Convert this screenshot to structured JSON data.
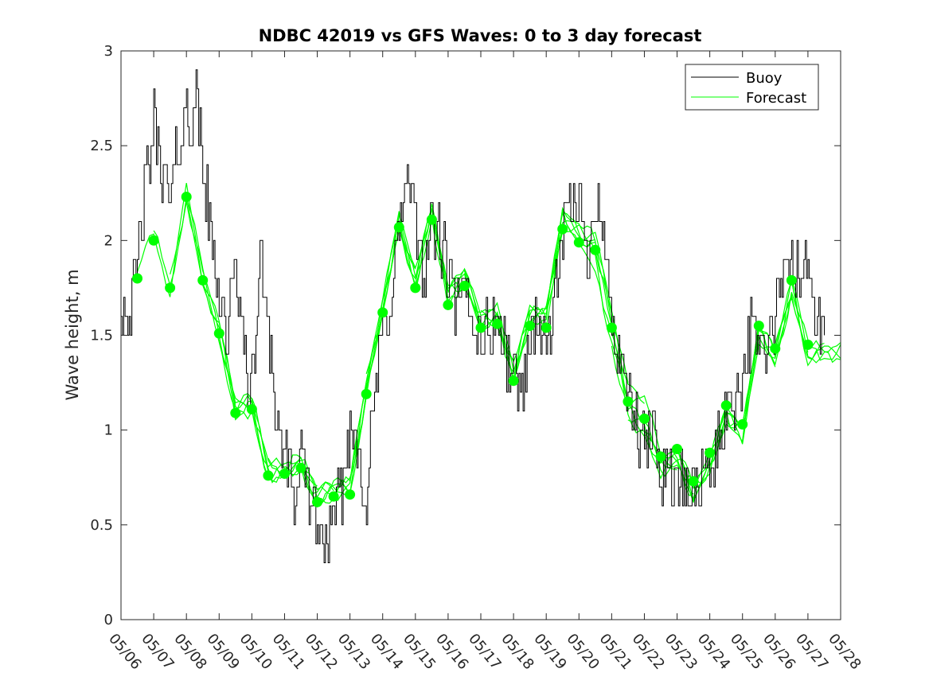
{
  "chart_data": {
    "type": "line",
    "title": "NDBC 42019 vs GFS Waves: 0 to 3 day forecast",
    "xlabel": "",
    "ylabel": "Wave height, m",
    "xlim": [
      "05/06",
      "05/28"
    ],
    "ylim": [
      0,
      3
    ],
    "x_ticks": [
      "05/06",
      "05/07",
      "05/08",
      "05/09",
      "05/10",
      "05/11",
      "05/12",
      "05/13",
      "05/14",
      "05/15",
      "05/16",
      "05/17",
      "05/18",
      "05/19",
      "05/20",
      "05/21",
      "05/22",
      "05/23",
      "05/24",
      "05/25",
      "05/26",
      "05/27",
      "05/28"
    ],
    "y_ticks": [
      "0",
      "0.5",
      "1",
      "1.5",
      "2",
      "2.5",
      "3"
    ],
    "grid": false,
    "legend": {
      "placement": "top-right",
      "entries": [
        "Buoy",
        "Forecast"
      ]
    },
    "colors": {
      "buoy": "#000000",
      "forecast": "#00ff00"
    },
    "series": [
      {
        "name": "Buoy",
        "x": [
          "05/06 00:00",
          "05/06 06:00",
          "05/06 12:00",
          "05/06 18:00",
          "05/07 00:00",
          "05/07 06:00",
          "05/07 12:00",
          "05/07 18:00",
          "05/08 00:00",
          "05/08 03:00",
          "05/08 06:00",
          "05/08 12:00",
          "05/08 18:00",
          "05/09 00:00",
          "05/09 06:00",
          "05/09 12:00",
          "05/09 18:00",
          "05/10 00:00",
          "05/10 06:00",
          "05/10 12:00",
          "05/10 18:00",
          "05/11 00:00",
          "05/11 06:00",
          "05/11 12:00",
          "05/11 18:00",
          "05/12 00:00",
          "05/12 06:00",
          "05/12 12:00",
          "05/12 18:00",
          "05/13 00:00",
          "05/13 06:00",
          "05/13 12:00",
          "05/13 18:00",
          "05/14 00:00",
          "05/14 06:00",
          "05/14 12:00",
          "05/14 18:00",
          "05/15 00:00",
          "05/15 06:00",
          "05/15 12:00",
          "05/15 18:00",
          "05/16 00:00",
          "05/16 06:00",
          "05/16 12:00",
          "05/16 18:00",
          "05/17 00:00",
          "05/17 06:00",
          "05/17 12:00",
          "05/17 18:00",
          "05/18 00:00",
          "05/18 06:00",
          "05/18 12:00",
          "05/18 18:00",
          "05/19 00:00",
          "05/19 06:00",
          "05/19 12:00",
          "05/19 18:00",
          "05/20 00:00",
          "05/20 06:00",
          "05/20 12:00",
          "05/20 18:00",
          "05/21 00:00",
          "05/21 06:00",
          "05/21 12:00",
          "05/21 18:00",
          "05/22 00:00",
          "05/22 06:00",
          "05/22 12:00",
          "05/22 18:00",
          "05/23 00:00",
          "05/23 06:00",
          "05/23 12:00",
          "05/23 18:00",
          "05/24 00:00",
          "05/24 06:00",
          "05/24 12:00",
          "05/24 18:00",
          "05/25 00:00",
          "05/25 06:00",
          "05/25 12:00",
          "05/25 18:00",
          "05/26 00:00",
          "05/26 06:00",
          "05/26 12:00",
          "05/26 18:00",
          "05/27 00:00",
          "05/27 06:00",
          "05/27 12:00"
        ],
        "y": [
          1.7,
          1.6,
          1.9,
          2.3,
          2.6,
          2.4,
          2.2,
          2.5,
          2.7,
          2.6,
          2.8,
          2.4,
          2.0,
          1.7,
          1.5,
          1.9,
          1.4,
          1.2,
          1.9,
          1.6,
          1.0,
          0.9,
          0.6,
          0.8,
          0.7,
          0.5,
          0.4,
          0.5,
          0.7,
          1.0,
          0.9,
          0.6,
          1.2,
          1.5,
          1.7,
          2.1,
          2.3,
          2.1,
          1.8,
          2.1,
          2.0,
          1.8,
          1.6,
          1.7,
          1.6,
          1.5,
          1.5,
          1.6,
          1.4,
          1.3,
          1.2,
          1.5,
          1.6,
          1.4,
          1.7,
          2.0,
          2.2,
          2.2,
          1.9,
          2.3,
          2.0,
          1.6,
          1.3,
          1.2,
          1.0,
          0.9,
          1.0,
          0.8,
          0.8,
          0.7,
          0.7,
          0.7,
          0.8,
          0.8,
          0.9,
          1.1,
          1.2,
          1.3,
          1.5,
          1.5,
          1.4,
          1.6,
          1.8,
          1.9,
          1.8,
          1.9,
          1.6,
          1.5
        ]
      },
      {
        "name": "Forecast",
        "x": [
          "05/06 12:00",
          "05/07 00:00",
          "05/07 12:00",
          "05/08 00:00",
          "05/08 12:00",
          "05/09 00:00",
          "05/09 12:00",
          "05/10 00:00",
          "05/10 12:00",
          "05/11 00:00",
          "05/11 12:00",
          "05/12 00:00",
          "05/12 12:00",
          "05/13 00:00",
          "05/13 12:00",
          "05/14 00:00",
          "05/14 12:00",
          "05/15 00:00",
          "05/15 12:00",
          "05/16 00:00",
          "05/16 12:00",
          "05/17 00:00",
          "05/17 12:00",
          "05/18 00:00",
          "05/18 12:00",
          "05/19 00:00",
          "05/19 12:00",
          "05/20 00:00",
          "05/20 12:00",
          "05/21 00:00",
          "05/21 12:00",
          "05/22 00:00",
          "05/22 12:00",
          "05/23 00:00",
          "05/23 12:00",
          "05/24 00:00",
          "05/24 12:00",
          "05/25 00:00",
          "05/25 12:00",
          "05/26 00:00",
          "05/26 12:00",
          "05/27 00:00"
        ],
        "y": [
          1.8,
          2.0,
          1.75,
          2.23,
          1.79,
          1.51,
          1.09,
          1.11,
          0.76,
          0.77,
          0.8,
          0.62,
          0.65,
          0.66,
          1.19,
          1.62,
          2.07,
          1.75,
          2.11,
          1.66,
          1.76,
          1.54,
          1.56,
          1.26,
          1.55,
          1.54,
          2.06,
          1.99,
          1.95,
          1.54,
          1.15,
          1.06,
          0.86,
          0.9,
          0.73,
          0.88,
          1.13,
          1.03,
          1.55,
          1.43,
          1.79,
          1.45
        ]
      }
    ]
  }
}
